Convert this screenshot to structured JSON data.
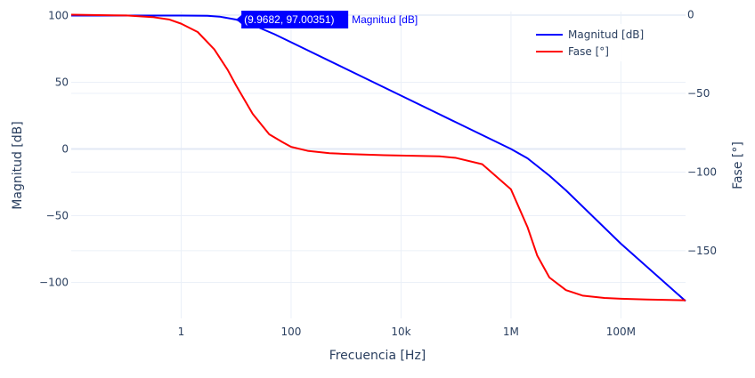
{
  "chart_data": {
    "type": "line",
    "xlabel": "Frecuencia [Hz]",
    "ylabel": "Magnitud [dB]",
    "y2label": "Fase [°]",
    "x_scale": "log",
    "xlim": [
      0.01,
      1500000000
    ],
    "ylim": [
      -127,
      103
    ],
    "y2lim": [
      -193,
      2
    ],
    "x_ticks": [
      {
        "value": 1,
        "label": "1"
      },
      {
        "value": 100,
        "label": "100"
      },
      {
        "value": 10000,
        "label": "10k"
      },
      {
        "value": 1000000,
        "label": "1M"
      },
      {
        "value": 100000000,
        "label": "100M"
      }
    ],
    "y_ticks": [
      100,
      50,
      0,
      -50,
      -100
    ],
    "y2_ticks": [
      0,
      -50,
      -100,
      -150
    ],
    "grid": true,
    "legend_position": "top-right",
    "series": [
      {
        "name": "Magnitud [dB]",
        "axis": "y",
        "color": "#0000ff",
        "x": [
          0.01,
          0.1,
          1,
          3,
          5,
          10,
          20,
          50,
          100,
          1000,
          10000,
          100000,
          1000000,
          2000000,
          5000000,
          10000000,
          100000000,
          1500000000
        ],
        "y": [
          100,
          100,
          100,
          99.8,
          99.2,
          97.0,
          93.0,
          86.0,
          80.0,
          60.0,
          40.0,
          20.0,
          0,
          -7,
          -20,
          -31,
          -71,
          -114
        ]
      },
      {
        "name": "Fase [°]",
        "axis": "y2",
        "color": "#ff0000",
        "x": [
          0.01,
          0.1,
          0.3,
          0.6,
          1,
          2,
          4,
          7,
          10,
          20,
          40,
          70,
          100,
          200,
          500,
          1000,
          5000,
          10000,
          50000,
          100000,
          300000,
          1000000,
          2000000,
          3000000,
          5000000,
          10000000,
          20000000,
          50000000,
          100000000,
          300000000,
          1500000000
        ],
        "y": [
          0,
          -0.5,
          -1.5,
          -3,
          -5.7,
          -11,
          -22,
          -35,
          -45,
          -63,
          -76,
          -81,
          -84,
          -86.5,
          -88,
          -88.5,
          -89.3,
          -89.5,
          -90,
          -91,
          -95,
          -111,
          -135,
          -153,
          -167,
          -175,
          -178.5,
          -180,
          -180.5,
          -181,
          -181.5
        ]
      }
    ],
    "hover_label": {
      "value_text": "(9.9682, 97.00351)",
      "series_text": "Magnitud [dB]",
      "x": 9.9682,
      "y": 97.00351,
      "color": "#0000ff"
    }
  }
}
